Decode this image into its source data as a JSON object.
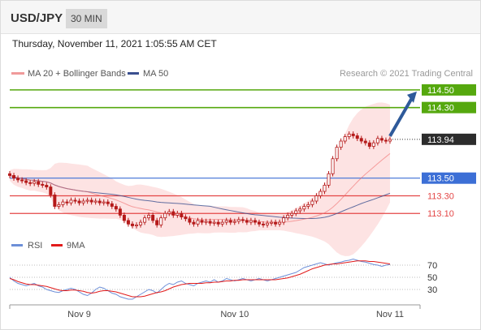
{
  "header": {
    "symbol": "USD/JPY",
    "timeframe": "30 MIN"
  },
  "datetime": "Thursday, November 11, 2021 1:05:55 AM CET",
  "legend": {
    "ma20": "MA 20 + Bollinger Bands",
    "ma50": "MA 50",
    "rsi": "RSI",
    "rsi_ma": "9MA",
    "copyright": "Research © 2021 Trading Central"
  },
  "colors": {
    "candle": "#b51a1a",
    "ma20": "#f06b6b",
    "ma50": "#3a4f8f",
    "bands": "#fde3e3",
    "green_level": "#55a80e",
    "blue_level": "#3c6fd6",
    "red_level": "#e44646",
    "rsi": "#6d8fd8",
    "rsi_ma": "#e21b1b"
  },
  "chart_data": [
    {
      "type": "candlestick",
      "x_ticks": [
        "Nov 9",
        "Nov 10",
        "Nov 11"
      ],
      "x_tick_index": [
        17,
        55,
        93
      ],
      "levels": [
        {
          "value": 114.5,
          "label": "114.50",
          "kind": "resistance",
          "color": "#55a80e"
        },
        {
          "value": 114.3,
          "label": "114.30",
          "kind": "resistance",
          "color": "#55a80e"
        },
        {
          "value": 113.94,
          "label": "113.94",
          "kind": "last",
          "color": "#2c2c2c"
        },
        {
          "value": 113.5,
          "label": "113.50",
          "kind": "pivot",
          "color": "#3c6fd6"
        },
        {
          "value": 113.3,
          "label": "113.30",
          "kind": "support",
          "color": "#e44646"
        },
        {
          "value": 113.1,
          "label": "113.10",
          "kind": "support",
          "color": "#e44646"
        }
      ],
      "arrow": {
        "from": 113.94,
        "to": 114.5
      },
      "ylim": [
        112.9,
        114.6
      ],
      "closes": [
        113.53,
        113.5,
        113.48,
        113.47,
        113.45,
        113.44,
        113.46,
        113.43,
        113.42,
        113.4,
        113.31,
        113.18,
        113.2,
        113.23,
        113.22,
        113.25,
        113.24,
        113.22,
        113.24,
        113.25,
        113.23,
        113.24,
        113.22,
        113.23,
        113.21,
        113.18,
        113.15,
        113.08,
        113.02,
        112.98,
        112.96,
        112.97,
        113.0,
        113.05,
        113.08,
        113.02,
        112.97,
        113.05,
        113.1,
        113.12,
        113.08,
        113.1,
        113.06,
        113.04,
        113.0,
        112.98,
        113.02,
        113.0,
        113.01,
        112.99,
        113.0,
        112.98,
        113.0,
        113.02,
        113.0,
        113.01,
        113.03,
        113.02,
        113.0,
        113.02,
        113.0,
        112.98,
        112.97,
        112.99,
        113.0,
        112.98,
        113.0,
        113.05,
        113.08,
        113.1,
        113.13,
        113.15,
        113.18,
        113.2,
        113.24,
        113.3,
        113.35,
        113.42,
        113.55,
        113.72,
        113.85,
        113.92,
        113.97,
        114.0,
        113.98,
        113.95,
        113.92,
        113.9,
        113.86,
        113.9,
        113.95,
        113.93,
        113.92,
        113.94
      ]
    },
    {
      "type": "line",
      "title": "RSI",
      "y_ticks": [
        70,
        50,
        30
      ],
      "ylim": [
        10,
        90
      ],
      "series": [
        {
          "name": "RSI",
          "values": [
            50,
            44,
            40,
            38,
            36,
            38,
            40,
            36,
            34,
            30,
            28,
            26,
            25,
            28,
            30,
            32,
            30,
            26,
            22,
            20,
            24,
            30,
            34,
            32,
            28,
            24,
            22,
            18,
            16,
            14,
            14,
            18,
            22,
            26,
            30,
            28,
            24,
            30,
            36,
            40,
            38,
            42,
            44,
            40,
            38,
            36,
            40,
            42,
            44,
            42,
            46,
            42,
            44,
            48,
            46,
            44,
            46,
            48,
            46,
            44,
            46,
            48,
            46,
            44,
            46,
            48,
            50,
            52,
            54,
            56,
            58,
            62,
            66,
            68,
            70,
            72,
            74,
            72,
            70,
            72,
            74,
            75,
            77,
            78,
            80,
            78,
            76,
            75,
            73,
            71,
            70,
            68,
            70,
            71
          ]
        },
        {
          "name": "9MA",
          "values": [
            48,
            46,
            43,
            41,
            39,
            38,
            38,
            37,
            36,
            35,
            33,
            31,
            29,
            28,
            28,
            29,
            29,
            28,
            27,
            25,
            24,
            25,
            27,
            28,
            28,
            27,
            26,
            24,
            22,
            20,
            18,
            18,
            18,
            19,
            21,
            23,
            25,
            26,
            28,
            31,
            34,
            36,
            38,
            39,
            40,
            40,
            40,
            40,
            41,
            41,
            42,
            42,
            43,
            44,
            44,
            45,
            45,
            46,
            46,
            46,
            46,
            46,
            46,
            46,
            46,
            46,
            47,
            48,
            49,
            51,
            53,
            55,
            58,
            61,
            64,
            66,
            68,
            70,
            71,
            72,
            72,
            73,
            74,
            75,
            76,
            77,
            77,
            77,
            76,
            76,
            75,
            74,
            73,
            72
          ]
        }
      ]
    }
  ]
}
